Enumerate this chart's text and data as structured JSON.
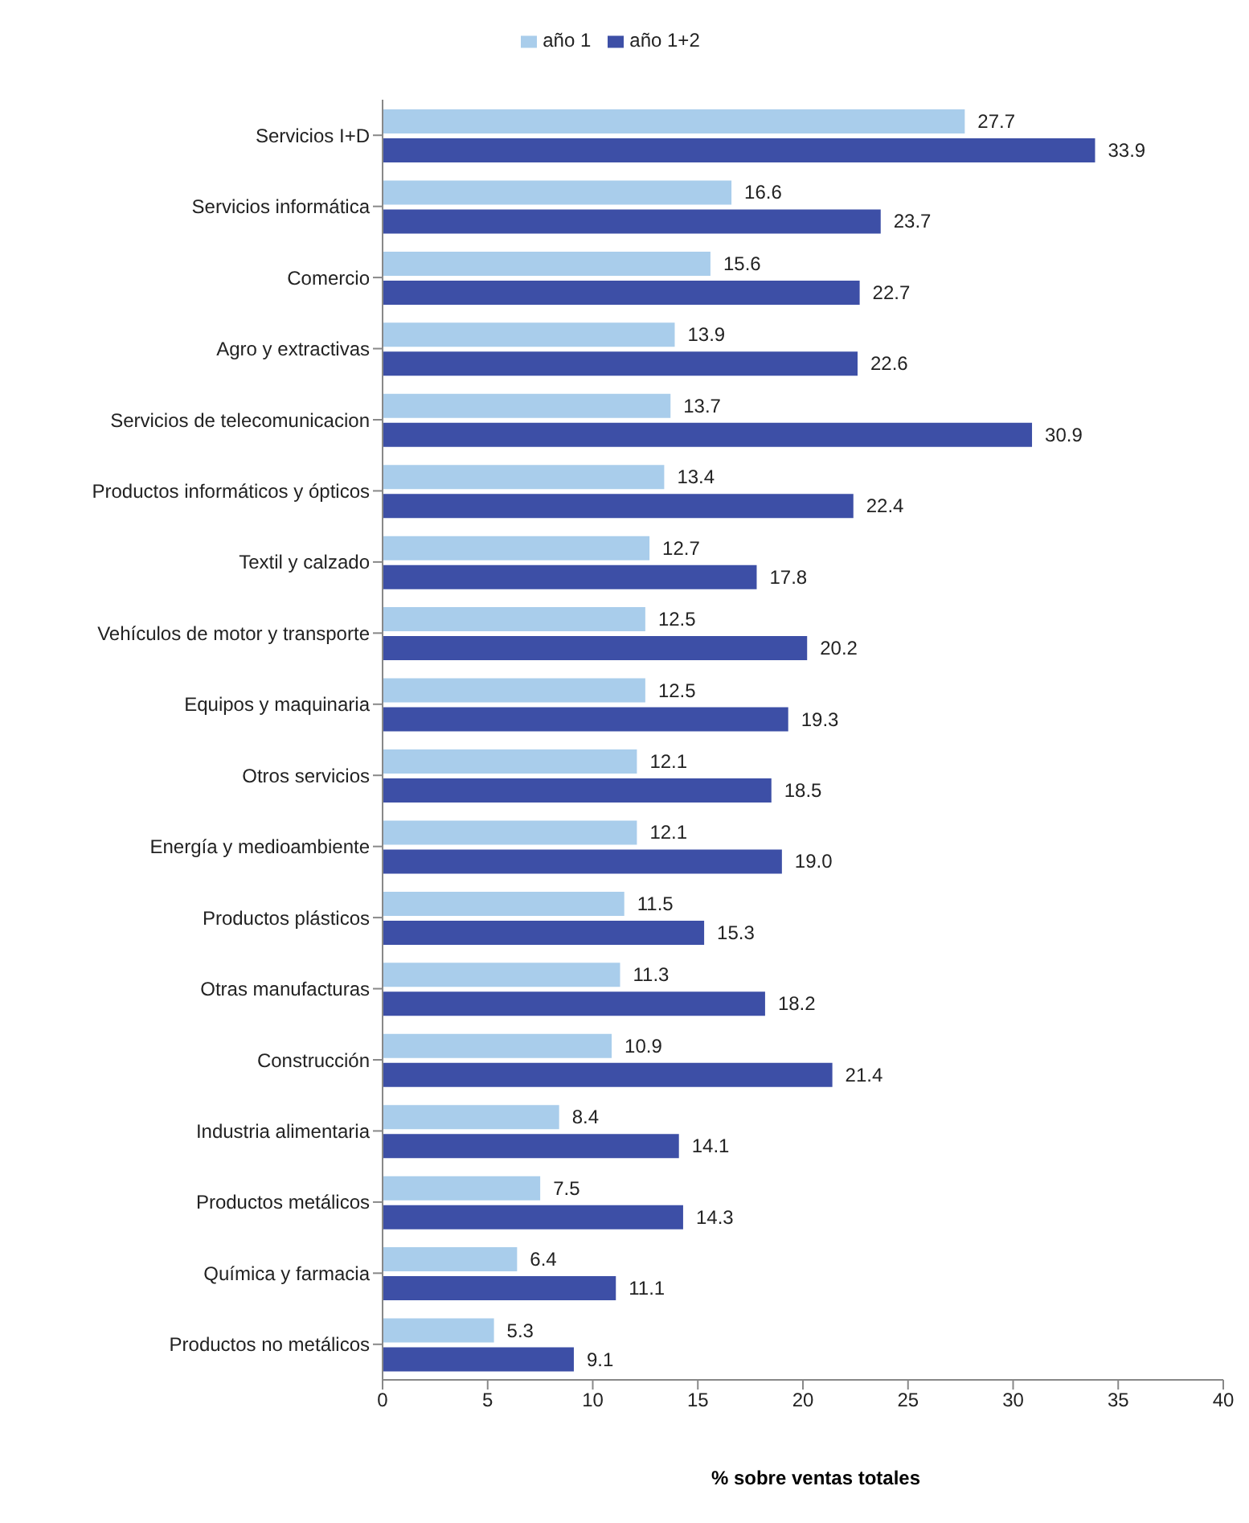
{
  "chart_data": {
    "type": "bar",
    "orientation": "horizontal",
    "xlabel": "% sobre ventas totales",
    "categories": [
      "Servicios I+D",
      "Servicios informática",
      "Comercio",
      "Agro y extractivas",
      "Servicios de telecomunicacion",
      "Productos informáticos y ópticos",
      "Textil y calzado",
      "Vehículos de motor y transporte",
      "Equipos y maquinaria",
      "Otros servicios",
      "Energía y medioambiente",
      "Productos plásticos",
      "Otras manufacturas",
      "Construcción",
      "Industria alimentaria",
      "Productos metálicos",
      "Química y farmacia",
      "Productos no metálicos"
    ],
    "series": [
      {
        "name": "año 1",
        "color": "#a9cdeb",
        "values": [
          27.7,
          16.6,
          15.6,
          13.9,
          13.7,
          13.4,
          12.7,
          12.5,
          12.5,
          12.1,
          12.1,
          11.5,
          11.3,
          10.9,
          8.4,
          7.5,
          6.4,
          5.3
        ],
        "value_labels": [
          "27.7",
          "16.6",
          "15.6",
          "13.9",
          "13.7",
          "13.4",
          "12.7",
          "12.5",
          "12.5",
          "12.1",
          "12.1",
          "11.5",
          "11.3",
          "10.9",
          "8.4",
          "7.5",
          "6.4",
          "5.3"
        ]
      },
      {
        "name": "año 1+2",
        "color": "#3d4fa6",
        "values": [
          33.9,
          23.7,
          22.7,
          22.6,
          30.9,
          22.4,
          17.8,
          20.2,
          19.3,
          18.5,
          19.0,
          15.3,
          18.2,
          21.4,
          14.1,
          14.3,
          11.1,
          9.1
        ],
        "value_labels": [
          "33.9",
          "23.7",
          "22.7",
          "22.6",
          "30.9",
          "22.4",
          "17.8",
          "20.2",
          "19.3",
          "18.5",
          "19.0",
          "15.3",
          "18.2",
          "21.4",
          "14.1",
          "14.3",
          "11.1",
          "9.1"
        ]
      }
    ],
    "xlim": [
      0,
      40
    ],
    "xticks": [
      0,
      5,
      10,
      15,
      20,
      25,
      30,
      35,
      40
    ],
    "legend": "top"
  }
}
